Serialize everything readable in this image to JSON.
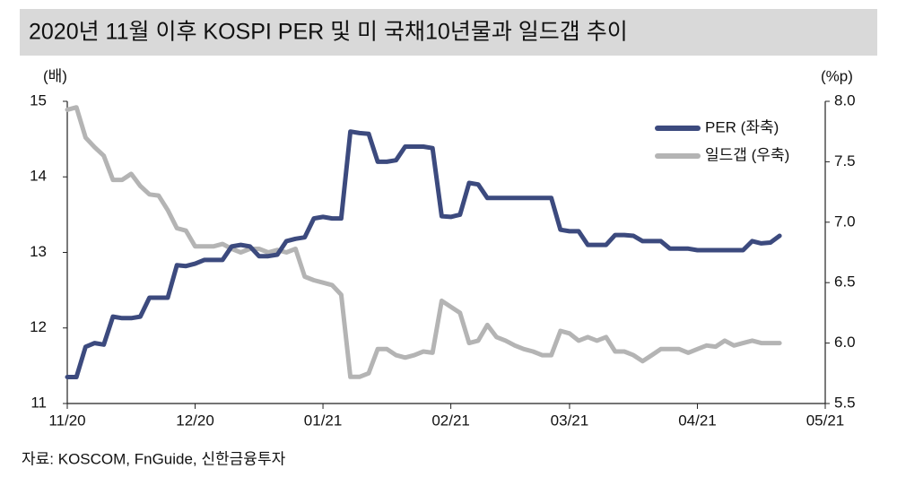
{
  "chart_data": {
    "type": "line",
    "title": "2020년 11월 이후 KOSPI PER 및 미 국채10년물과 일드갭 추이",
    "y_label": "(배)",
    "y2_label": "(%p)",
    "source": "자료: KOSCOM, FnGuide, 신한금융투자",
    "legend": "top-right",
    "categories": [
      "11/20",
      null,
      null,
      null,
      null,
      null,
      null,
      null,
      null,
      null,
      null,
      null,
      null,
      null,
      "12/20",
      null,
      null,
      null,
      null,
      null,
      null,
      null,
      null,
      null,
      null,
      null,
      null,
      null,
      "01/21",
      null,
      null,
      null,
      null,
      null,
      null,
      null,
      null,
      null,
      null,
      null,
      null,
      null,
      "02/21",
      null,
      null,
      null,
      null,
      null,
      null,
      null,
      null,
      null,
      null,
      null,
      null,
      "03/21",
      null,
      null,
      null,
      null,
      null,
      null,
      null,
      null,
      null,
      null,
      null,
      null,
      null,
      "04/21",
      null,
      null,
      null,
      null,
      null,
      null,
      null,
      null,
      null,
      null,
      null,
      null,
      null,
      "05/21"
    ],
    "series": [
      {
        "name": "PER (좌축)",
        "color": "#3c4a7e",
        "axis": "y",
        "values": [
          11.35,
          11.35,
          11.75,
          11.8,
          11.78,
          12.15,
          12.13,
          12.13,
          12.15,
          12.4,
          12.4,
          12.4,
          12.83,
          12.82,
          12.85,
          12.9,
          12.9,
          12.9,
          13.08,
          13.1,
          13.08,
          12.95,
          12.95,
          12.97,
          13.15,
          13.18,
          13.2,
          13.45,
          13.47,
          13.45,
          13.45,
          14.6,
          14.58,
          14.57,
          14.2,
          14.2,
          14.22,
          14.4,
          14.4,
          14.4,
          14.38,
          13.48,
          13.47,
          13.5,
          13.92,
          13.9,
          13.72,
          13.72,
          13.72,
          13.72,
          13.72,
          13.72,
          13.72,
          13.72,
          13.3,
          13.28,
          13.28,
          13.1,
          13.1,
          13.1,
          13.23,
          13.23,
          13.22,
          13.15,
          13.15,
          13.15,
          13.05,
          13.05,
          13.05,
          13.03,
          13.03,
          13.03,
          13.03,
          13.03,
          13.03,
          13.15,
          13.12,
          13.13,
          13.22,
          null,
          null,
          null,
          null,
          null
        ]
      },
      {
        "name": "일드갭 (우축)",
        "color": "#b4b4b4",
        "axis": "y2",
        "values": [
          7.93,
          7.95,
          7.7,
          7.62,
          7.55,
          7.35,
          7.35,
          7.4,
          7.3,
          7.23,
          7.22,
          7.1,
          6.95,
          6.93,
          6.8,
          6.8,
          6.8,
          6.82,
          6.78,
          6.75,
          6.78,
          6.78,
          6.75,
          6.77,
          6.75,
          6.78,
          6.55,
          6.52,
          6.5,
          6.48,
          6.4,
          5.72,
          5.72,
          5.75,
          5.95,
          5.95,
          5.9,
          5.88,
          5.9,
          5.93,
          5.92,
          6.35,
          6.3,
          6.25,
          6.0,
          6.02,
          6.15,
          6.05,
          6.02,
          5.98,
          5.95,
          5.93,
          5.9,
          5.9,
          6.1,
          6.08,
          6.02,
          6.05,
          6.02,
          6.05,
          5.93,
          5.93,
          5.9,
          5.85,
          5.9,
          5.95,
          5.95,
          5.95,
          5.92,
          5.95,
          5.98,
          5.97,
          6.02,
          5.98,
          6.0,
          6.02,
          6.0,
          6.0,
          6.0,
          null,
          null,
          null,
          null,
          null
        ]
      }
    ],
    "ylim": [
      11,
      15
    ],
    "yticks": [
      11,
      12,
      13,
      14,
      15
    ],
    "y2lim": [
      5.5,
      8.0
    ],
    "y2ticks": [
      {
        "value": 5.5,
        "label": "5.5"
      },
      {
        "value": 6,
        "label": "6.0"
      },
      {
        "value": 6.5,
        "label": "6.5"
      },
      {
        "value": 7,
        "label": "7.0"
      },
      {
        "value": 7.5,
        "label": "7.5"
      },
      {
        "value": 8,
        "label": "8.0"
      }
    ]
  }
}
